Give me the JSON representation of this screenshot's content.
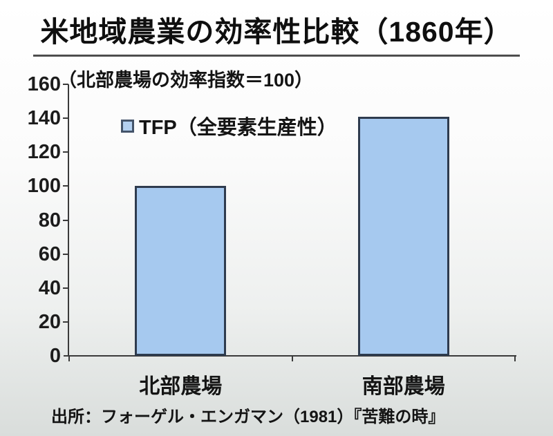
{
  "colors": {
    "bar_fill": "#a6c9ef",
    "bar_border": "#2e3b4e",
    "axis": "#3a3a3a",
    "text": "#141414",
    "background_top": "#ffffff",
    "background_bottom": "#d9dddb"
  },
  "chart_data": {
    "type": "bar",
    "title": "米地域農業の効率性比較（1860年）",
    "subtitle": "（北部農場の効率指数＝100）",
    "legend": [
      "TFP（全要素生産性）"
    ],
    "legend_position": "top-left-inside",
    "categories": [
      "北部農場",
      "南部農場"
    ],
    "values": [
      100,
      141
    ],
    "xlabel": "",
    "ylabel": "",
    "ylim": [
      0,
      160
    ],
    "ytick_step": 20,
    "yticks": [
      0,
      20,
      40,
      60,
      80,
      100,
      120,
      140,
      160
    ],
    "grid": false,
    "source": "出所：フォーゲル・エンガマン（1981）『苦難の時』"
  }
}
